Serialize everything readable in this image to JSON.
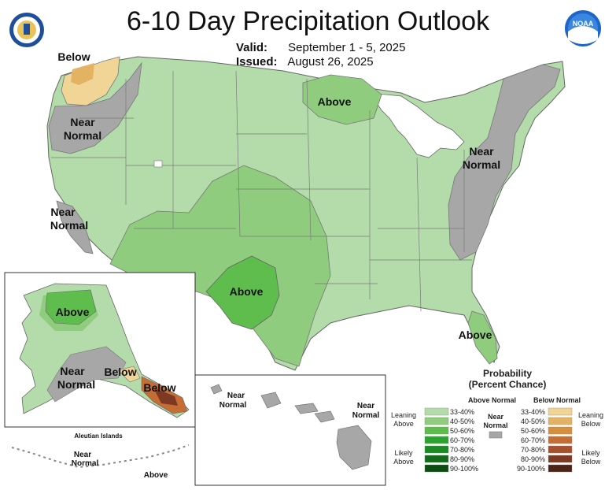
{
  "header": {
    "title": "6-10 Day Precipitation Outlook",
    "valid_label": "Valid:",
    "valid_value": "September 1 - 5, 2025",
    "issued_label": "Issued:",
    "issued_value": "August 26, 2025"
  },
  "logos": {
    "left": "doc-seal-logo",
    "right": "noaa-logo",
    "noaa_text": "NOAA"
  },
  "map_labels": {
    "below_nw": "Below",
    "near_nw_1": "Near",
    "near_nw_2": "Normal",
    "near_ca_1": "Near",
    "near_ca_2": "Normal",
    "above_mn": "Above",
    "near_ne_1": "Near",
    "near_ne_2": "Normal",
    "above_tx": "Above",
    "above_fl": "Above"
  },
  "alaska": {
    "above": "Above",
    "near_1": "Near",
    "near_2": "Normal",
    "below_1": "Below",
    "below_2": "Below",
    "aleutian_title": "Aleutian Islands",
    "aleutian_near_1": "Near",
    "aleutian_near_2": "Normal",
    "aleutian_above": "Above"
  },
  "hawaii": {
    "near_w_1": "Near",
    "near_w_2": "Normal",
    "near_e_1": "Near",
    "near_e_2": "Normal"
  },
  "legend": {
    "title_1": "Probability",
    "title_2": "(Percent Chance)",
    "above_header": "Above Normal",
    "below_header": "Below Normal",
    "near_1": "Near",
    "near_2": "Normal",
    "leaning_above_1": "Leaning",
    "leaning_above_2": "Above",
    "likely_above_1": "Likely",
    "likely_above_2": "Above",
    "leaning_below_1": "Leaning",
    "leaning_below_2": "Below",
    "likely_below_1": "Likely",
    "likely_below_2": "Below",
    "above_bins": [
      {
        "label": "33-40%",
        "color": "#b3dcaa"
      },
      {
        "label": "40-50%",
        "color": "#8fcc7d"
      },
      {
        "label": "50-60%",
        "color": "#5fbd4e"
      },
      {
        "label": "60-70%",
        "color": "#2ea22f"
      },
      {
        "label": "70-80%",
        "color": "#1b8a25"
      },
      {
        "label": "80-90%",
        "color": "#136b1a"
      },
      {
        "label": "90-100%",
        "color": "#0b4d10"
      }
    ],
    "below_bins": [
      {
        "label": "33-40%",
        "color": "#f0d596"
      },
      {
        "label": "40-50%",
        "color": "#e3b262"
      },
      {
        "label": "50-60%",
        "color": "#d68f3c"
      },
      {
        "label": "60-70%",
        "color": "#c56d34"
      },
      {
        "label": "70-80%",
        "color": "#a8502d"
      },
      {
        "label": "80-90%",
        "color": "#7d3922"
      },
      {
        "label": "90-100%",
        "color": "#4d2418"
      }
    ],
    "near_color": "#a7a7a7"
  }
}
